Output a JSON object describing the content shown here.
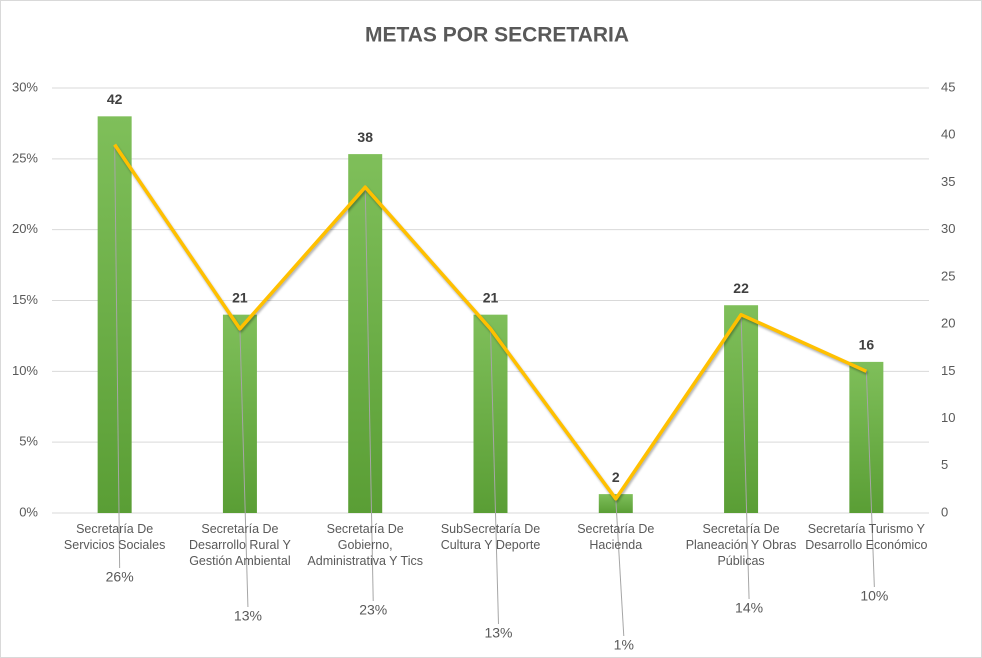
{
  "chart_data": {
    "type": "bar-line",
    "title": "METAS POR SECRETARIA",
    "categories": [
      "Secretaría De Servicios Sociales",
      "Secretaría De Desarrollo Rural Y Gestión Ambiental",
      "Secretaría De Gobierno, Administrativa Y Tics",
      "SubSecretaría De Cultura Y Deporte",
      "Secretaría De Hacienda",
      "Secretaría De Planeación Y Obras Públicas",
      "Secretaría Turismo Y Desarrollo Económico"
    ],
    "series": [
      {
        "type": "bar",
        "color": "#70ad47",
        "axis": "y2",
        "values": [
          42,
          21,
          38,
          21,
          2,
          22,
          16
        ]
      },
      {
        "type": "line",
        "color": "#ffc000",
        "axis": "y",
        "values": [
          26,
          13,
          23,
          13,
          1,
          14,
          10
        ],
        "value_labels": [
          "26%",
          "13%",
          "23%",
          "13%",
          "1%",
          "14%",
          "10%"
        ]
      }
    ],
    "ylim": [
      0,
      30
    ],
    "yticks": [
      {
        "value": 0,
        "label": "0%"
      },
      {
        "value": 5,
        "label": "5%"
      },
      {
        "value": 10,
        "label": "10%"
      },
      {
        "value": 15,
        "label": "15%"
      },
      {
        "value": 20,
        "label": "20%"
      },
      {
        "value": 25,
        "label": "25%"
      },
      {
        "value": 30,
        "label": "30%"
      }
    ],
    "y2lim": [
      0,
      45
    ],
    "y2ticks": [
      0,
      5,
      10,
      15,
      20,
      25,
      30,
      35,
      40,
      45
    ],
    "grid": true
  }
}
